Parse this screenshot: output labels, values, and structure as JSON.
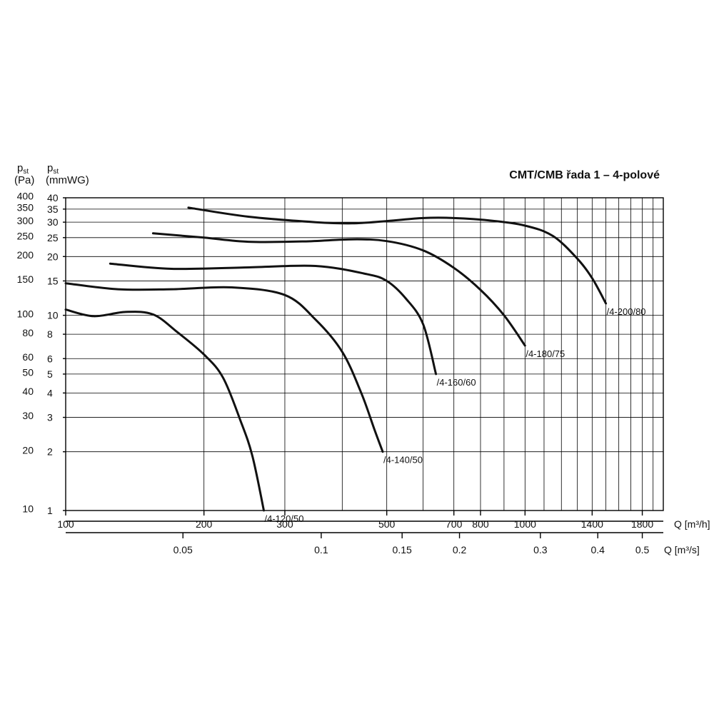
{
  "chart_data": {
    "type": "line",
    "title": "CMT/CMB řada 1 – 4-polové",
    "x_scale": "log",
    "y_scale": "log",
    "xlim": [
      100,
      2000
    ],
    "ylim_mmwg": [
      1,
      40
    ],
    "grid": true,
    "legend": "none (labels at curve ends)",
    "y_left": {
      "symbol": "p",
      "subscript": "st",
      "unit": "(Pa)",
      "ticks": [
        {
          "v": 10,
          "label": "10"
        },
        {
          "v": 20,
          "label": "20"
        },
        {
          "v": 30,
          "label": "30"
        },
        {
          "v": 40,
          "label": "40"
        },
        {
          "v": 50,
          "label": "50"
        },
        {
          "v": 60,
          "label": "60"
        },
        {
          "v": 80,
          "label": "80"
        },
        {
          "v": 100,
          "label": "100"
        },
        {
          "v": 150,
          "label": "150"
        },
        {
          "v": 200,
          "label": "200"
        },
        {
          "v": 250,
          "label": "250"
        },
        {
          "v": 300,
          "label": "300"
        },
        {
          "v": 350,
          "label": "350"
        },
        {
          "v": 400,
          "label": "400"
        }
      ]
    },
    "y_right": {
      "symbol": "p",
      "subscript": "st",
      "unit": "(mmWG)",
      "ticks": [
        {
          "v": 1,
          "label": "1"
        },
        {
          "v": 2,
          "label": "2"
        },
        {
          "v": 3,
          "label": "3"
        },
        {
          "v": 4,
          "label": "4"
        },
        {
          "v": 5,
          "label": "5"
        },
        {
          "v": 6,
          "label": "6"
        },
        {
          "v": 8,
          "label": "8"
        },
        {
          "v": 10,
          "label": "10"
        },
        {
          "v": 15,
          "label": "15"
        },
        {
          "v": 20,
          "label": "20"
        },
        {
          "v": 25,
          "label": "25"
        },
        {
          "v": 30,
          "label": "30"
        },
        {
          "v": 35,
          "label": "35"
        },
        {
          "v": 40,
          "label": "40"
        }
      ]
    },
    "x_axis_m3h": {
      "label": "Q [m³/h]",
      "ticks": [
        {
          "v": 100,
          "label": "100"
        },
        {
          "v": 200,
          "label": "200"
        },
        {
          "v": 300,
          "label": "300"
        },
        {
          "v": 500,
          "label": "500"
        },
        {
          "v": 700,
          "label": "700"
        },
        {
          "v": 800,
          "label": "800"
        },
        {
          "v": 1000,
          "label": "1000"
        },
        {
          "v": 1400,
          "label": "1400"
        },
        {
          "v": 1800,
          "label": "1800"
        }
      ]
    },
    "x_axis_m3s": {
      "label": "Q [m³/s]",
      "ticks": [
        {
          "v": 0.05,
          "label": "0.05"
        },
        {
          "v": 0.1,
          "label": "0.1"
        },
        {
          "v": 0.15,
          "label": "0.15"
        },
        {
          "v": 0.2,
          "label": "0.2"
        },
        {
          "v": 0.3,
          "label": "0.3"
        },
        {
          "v": 0.4,
          "label": "0.4"
        },
        {
          "v": 0.5,
          "label": "0.5"
        }
      ]
    },
    "series": [
      {
        "name": "/4-120/50",
        "points": [
          [
            100,
            10.7
          ],
          [
            115,
            9.9
          ],
          [
            135,
            10.4
          ],
          [
            155,
            10.1
          ],
          [
            175,
            8.2
          ],
          [
            200,
            6.3
          ],
          [
            220,
            4.8
          ],
          [
            240,
            2.9
          ],
          [
            255,
            1.9
          ],
          [
            270,
            1.0
          ]
        ]
      },
      {
        "name": "/4-140/50",
        "points": [
          [
            100,
            14.6
          ],
          [
            130,
            13.6
          ],
          [
            170,
            13.6
          ],
          [
            230,
            13.9
          ],
          [
            300,
            12.7
          ],
          [
            350,
            9.5
          ],
          [
            400,
            6.5
          ],
          [
            440,
            4.0
          ],
          [
            470,
            2.6
          ],
          [
            490,
            2.0
          ]
        ]
      },
      {
        "name": "/4-160/60",
        "points": [
          [
            125,
            18.4
          ],
          [
            170,
            17.3
          ],
          [
            250,
            17.6
          ],
          [
            350,
            17.9
          ],
          [
            450,
            16.3
          ],
          [
            500,
            15.0
          ],
          [
            550,
            12.2
          ],
          [
            600,
            9.0
          ],
          [
            640,
            5.0
          ]
        ]
      },
      {
        "name": "/4-180/75",
        "points": [
          [
            155,
            26.3
          ],
          [
            200,
            25.0
          ],
          [
            250,
            23.8
          ],
          [
            330,
            23.9
          ],
          [
            420,
            24.5
          ],
          [
            500,
            24.0
          ],
          [
            600,
            21.5
          ],
          [
            700,
            17.5
          ],
          [
            800,
            13.5
          ],
          [
            900,
            10.0
          ],
          [
            1000,
            7.0
          ]
        ]
      },
      {
        "name": "/4-200/80",
        "points": [
          [
            185,
            35.6
          ],
          [
            250,
            32.0
          ],
          [
            350,
            30.0
          ],
          [
            420,
            29.6
          ],
          [
            500,
            30.4
          ],
          [
            600,
            31.5
          ],
          [
            700,
            31.5
          ],
          [
            850,
            30.5
          ],
          [
            1000,
            28.8
          ],
          [
            1150,
            25.5
          ],
          [
            1300,
            19.5
          ],
          [
            1400,
            15.5
          ],
          [
            1500,
            11.5
          ]
        ]
      }
    ]
  }
}
